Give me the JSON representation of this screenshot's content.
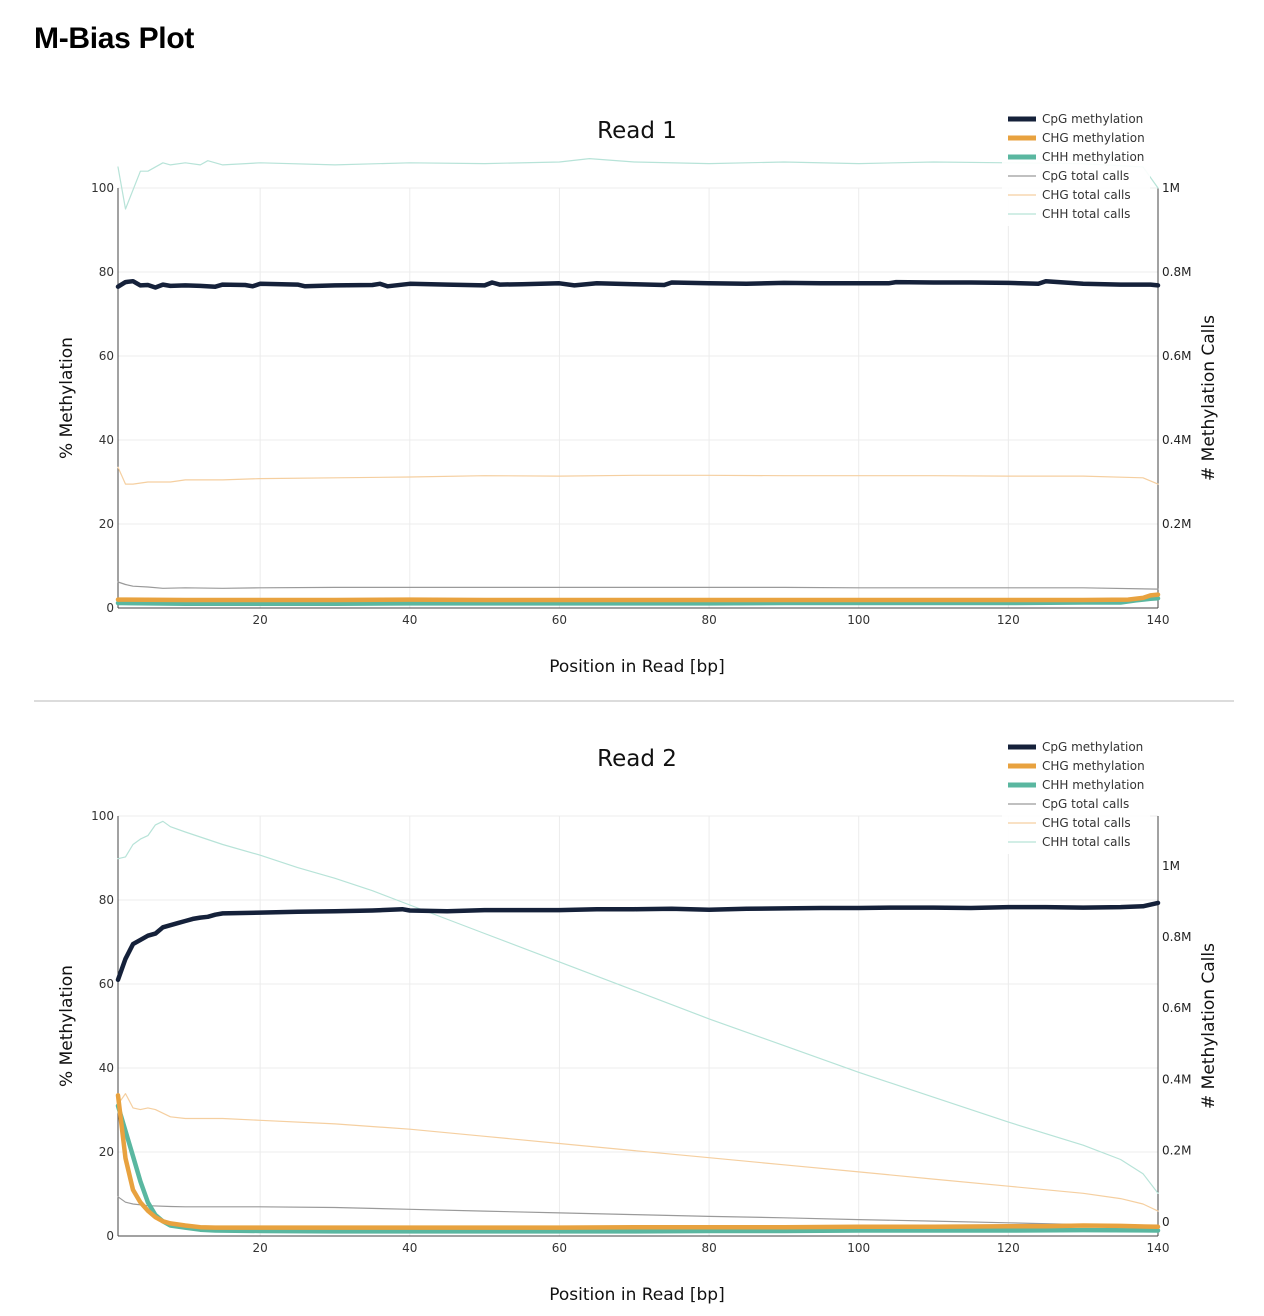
{
  "page": {
    "title": "M-Bias Plot"
  },
  "legend": {
    "labels": [
      "CpG methylation",
      "CHG methylation",
      "CHH methylation",
      "CpG total calls",
      "CHG total calls",
      "CHH total calls"
    ],
    "colors": [
      "#15213a",
      "#e8a23f",
      "#5ab7a0",
      "#9a9a9a",
      "#f5cfa0",
      "#b7e3d8"
    ]
  },
  "chart_data": [
    {
      "type": "line",
      "title": "Read 1",
      "xlabel": "Position in Read [bp]",
      "ylabel": "% Methylation",
      "y2label": "# Methylation Calls",
      "xlim": [
        1,
        140
      ],
      "ylim": [
        0,
        100
      ],
      "y2lim": [
        0,
        1000000
      ],
      "x_ticks": [
        "20",
        "40",
        "60",
        "80",
        "100",
        "120",
        "140"
      ],
      "y_ticks": [
        "0",
        "20",
        "40",
        "60",
        "80",
        "100"
      ],
      "y2_ticks": [
        "0.2M",
        "0.4M",
        "0.6M",
        "0.8M",
        "1M"
      ],
      "grid": true,
      "legend_position": "top-right",
      "series": [
        {
          "name": "CpG methylation",
          "axis": "left",
          "x": [
            1,
            2,
            3,
            4,
            5,
            6,
            7,
            8,
            10,
            12,
            14,
            15,
            18,
            19,
            20,
            25,
            26,
            30,
            35,
            36,
            37,
            40,
            45,
            50,
            51,
            52,
            55,
            60,
            62,
            65,
            70,
            74,
            75,
            80,
            85,
            90,
            95,
            100,
            104,
            105,
            110,
            115,
            120,
            124,
            125,
            130,
            135,
            139,
            140
          ],
          "y": [
            76.5,
            77.6,
            77.8,
            76.8,
            76.9,
            76.3,
            77.0,
            76.7,
            76.8,
            76.7,
            76.5,
            77.0,
            76.9,
            76.6,
            77.2,
            77.0,
            76.6,
            76.8,
            76.9,
            77.2,
            76.6,
            77.2,
            77.0,
            76.8,
            77.5,
            77.0,
            77.1,
            77.3,
            76.8,
            77.3,
            77.1,
            76.9,
            77.5,
            77.3,
            77.2,
            77.4,
            77.3,
            77.3,
            77.3,
            77.6,
            77.5,
            77.5,
            77.4,
            77.2,
            77.8,
            77.2,
            77.0,
            77.0,
            76.8
          ]
        },
        {
          "name": "CHG methylation",
          "axis": "left",
          "x": [
            1,
            10,
            20,
            30,
            40,
            50,
            60,
            70,
            80,
            90,
            100,
            110,
            120,
            130,
            136,
            138,
            139,
            140
          ],
          "y": [
            2.0,
            1.9,
            1.9,
            1.9,
            2.0,
            1.9,
            1.9,
            1.9,
            1.9,
            1.9,
            1.9,
            1.9,
            1.9,
            1.9,
            2.0,
            2.4,
            3.0,
            3.2
          ]
        },
        {
          "name": "CHH methylation",
          "axis": "left",
          "x": [
            1,
            10,
            20,
            30,
            40,
            50,
            60,
            70,
            80,
            90,
            100,
            110,
            120,
            130,
            135,
            137,
            139,
            140
          ],
          "y": [
            1.2,
            1.0,
            1.0,
            1.0,
            1.1,
            1.1,
            1.1,
            1.1,
            1.1,
            1.2,
            1.2,
            1.2,
            1.2,
            1.3,
            1.3,
            1.8,
            2.2,
            2.3
          ]
        },
        {
          "name": "CpG total calls",
          "axis": "right",
          "x": [
            1,
            2,
            3,
            5,
            7,
            10,
            15,
            20,
            30,
            40,
            50,
            60,
            70,
            80,
            90,
            100,
            110,
            120,
            130,
            140
          ],
          "y": [
            62000,
            56000,
            52000,
            50000,
            47000,
            48000,
            47000,
            48000,
            49000,
            49000,
            49000,
            49000,
            49000,
            49000,
            49000,
            48000,
            48000,
            48000,
            48000,
            45000
          ]
        },
        {
          "name": "CHG total calls",
          "axis": "right",
          "x": [
            1,
            2,
            3,
            5,
            8,
            10,
            15,
            20,
            30,
            40,
            50,
            60,
            70,
            80,
            90,
            100,
            110,
            120,
            130,
            138,
            140
          ],
          "y": [
            335000,
            295000,
            295000,
            300000,
            300000,
            305000,
            305000,
            308000,
            310000,
            312000,
            315000,
            314000,
            316000,
            316000,
            315000,
            315000,
            315000,
            314000,
            314000,
            310000,
            295000
          ]
        },
        {
          "name": "CHH total calls",
          "axis": "right",
          "x": [
            1,
            2,
            4,
            5,
            7,
            8,
            10,
            12,
            13,
            15,
            20,
            30,
            40,
            50,
            60,
            64,
            70,
            80,
            90,
            100,
            110,
            120,
            130,
            138,
            140
          ],
          "y": [
            1050000,
            950000,
            1040000,
            1040000,
            1060000,
            1055000,
            1060000,
            1055000,
            1065000,
            1055000,
            1060000,
            1055000,
            1060000,
            1058000,
            1062000,
            1070000,
            1062000,
            1058000,
            1062000,
            1058000,
            1062000,
            1060000,
            1058000,
            1050000,
            1000000
          ]
        }
      ]
    },
    {
      "type": "line",
      "title": "Read 2",
      "xlabel": "Position in Read [bp]",
      "ylabel": "% Methylation",
      "y2label": "# Methylation Calls",
      "xlim": [
        1,
        140
      ],
      "ylim": [
        0,
        100
      ],
      "y2lim": [
        -40000,
        1140000
      ],
      "x_ticks": [
        "20",
        "40",
        "60",
        "80",
        "100",
        "120",
        "140"
      ],
      "y_ticks": [
        "0",
        "20",
        "40",
        "60",
        "80",
        "100"
      ],
      "y2_ticks": [
        "0",
        "0.2M",
        "0.4M",
        "0.6M",
        "0.8M",
        "1M"
      ],
      "grid": true,
      "legend_position": "top-right",
      "series": [
        {
          "name": "CpG methylation",
          "axis": "left",
          "x": [
            1,
            2,
            3,
            4,
            5,
            6,
            7,
            8,
            9,
            10,
            11,
            12,
            13,
            14,
            15,
            20,
            25,
            30,
            35,
            39,
            40,
            45,
            50,
            55,
            60,
            65,
            70,
            75,
            80,
            85,
            90,
            95,
            100,
            105,
            110,
            115,
            120,
            125,
            130,
            135,
            138,
            140
          ],
          "y": [
            61.0,
            66.0,
            69.5,
            70.5,
            71.5,
            72.0,
            73.5,
            74.0,
            74.5,
            75.0,
            75.5,
            75.8,
            76.0,
            76.5,
            76.8,
            77.0,
            77.2,
            77.3,
            77.5,
            77.8,
            77.5,
            77.3,
            77.6,
            77.6,
            77.6,
            77.8,
            77.8,
            77.9,
            77.7,
            77.9,
            78.0,
            78.1,
            78.1,
            78.2,
            78.2,
            78.1,
            78.3,
            78.3,
            78.2,
            78.3,
            78.5,
            79.3
          ]
        },
        {
          "name": "CHG methylation",
          "axis": "left",
          "x": [
            1,
            2,
            3,
            4,
            5,
            6,
            7,
            8,
            10,
            12,
            14,
            20,
            30,
            40,
            50,
            60,
            70,
            80,
            90,
            100,
            110,
            120,
            125,
            130,
            135,
            140
          ],
          "y": [
            33.5,
            18.5,
            11.0,
            8.0,
            6.0,
            4.5,
            3.5,
            3.0,
            2.5,
            2.1,
            2.0,
            2.0,
            2.0,
            2.0,
            2.0,
            2.0,
            2.1,
            2.1,
            2.1,
            2.2,
            2.2,
            2.3,
            2.3,
            2.5,
            2.4,
            2.2
          ]
        },
        {
          "name": "CHH methylation",
          "axis": "left",
          "x": [
            1,
            2,
            3,
            4,
            5,
            6,
            7,
            8,
            10,
            12,
            14,
            20,
            30,
            40,
            50,
            60,
            70,
            80,
            90,
            100,
            110,
            120,
            130,
            140
          ],
          "y": [
            31.0,
            25.0,
            19.0,
            13.0,
            8.0,
            5.0,
            3.5,
            2.5,
            2.0,
            1.5,
            1.3,
            1.2,
            1.1,
            1.1,
            1.1,
            1.1,
            1.1,
            1.2,
            1.2,
            1.3,
            1.3,
            1.3,
            1.4,
            1.3
          ]
        },
        {
          "name": "CpG total calls",
          "axis": "right",
          "x": [
            1,
            2,
            3,
            5,
            8,
            10,
            20,
            30,
            40,
            50,
            60,
            70,
            80,
            90,
            100,
            110,
            120,
            130,
            140
          ],
          "y": [
            70000,
            55000,
            50000,
            45000,
            43000,
            42000,
            42000,
            40000,
            35000,
            30000,
            25000,
            20000,
            15000,
            11000,
            6000,
            2000,
            -3000,
            -8000,
            -15000
          ]
        },
        {
          "name": "CHG total calls",
          "axis": "right",
          "x": [
            1,
            2,
            3,
            4,
            5,
            6,
            7,
            8,
            10,
            15,
            20,
            30,
            40,
            50,
            60,
            70,
            80,
            90,
            100,
            110,
            120,
            130,
            135,
            138,
            140
          ],
          "y": [
            330000,
            360000,
            320000,
            315000,
            320000,
            315000,
            305000,
            295000,
            290000,
            290000,
            285000,
            275000,
            260000,
            240000,
            220000,
            200000,
            180000,
            160000,
            140000,
            120000,
            100000,
            80000,
            65000,
            50000,
            30000
          ]
        },
        {
          "name": "CHH total calls",
          "axis": "right",
          "x": [
            1,
            2,
            3,
            4,
            5,
            6,
            7,
            8,
            10,
            15,
            20,
            25,
            30,
            35,
            40,
            50,
            60,
            70,
            80,
            90,
            100,
            110,
            120,
            130,
            135,
            138,
            140
          ],
          "y": [
            1020000,
            1025000,
            1060000,
            1075000,
            1085000,
            1115000,
            1125000,
            1110000,
            1095000,
            1060000,
            1030000,
            995000,
            965000,
            930000,
            890000,
            810000,
            730000,
            650000,
            570000,
            495000,
            420000,
            350000,
            280000,
            215000,
            175000,
            135000,
            80000
          ]
        }
      ]
    }
  ]
}
